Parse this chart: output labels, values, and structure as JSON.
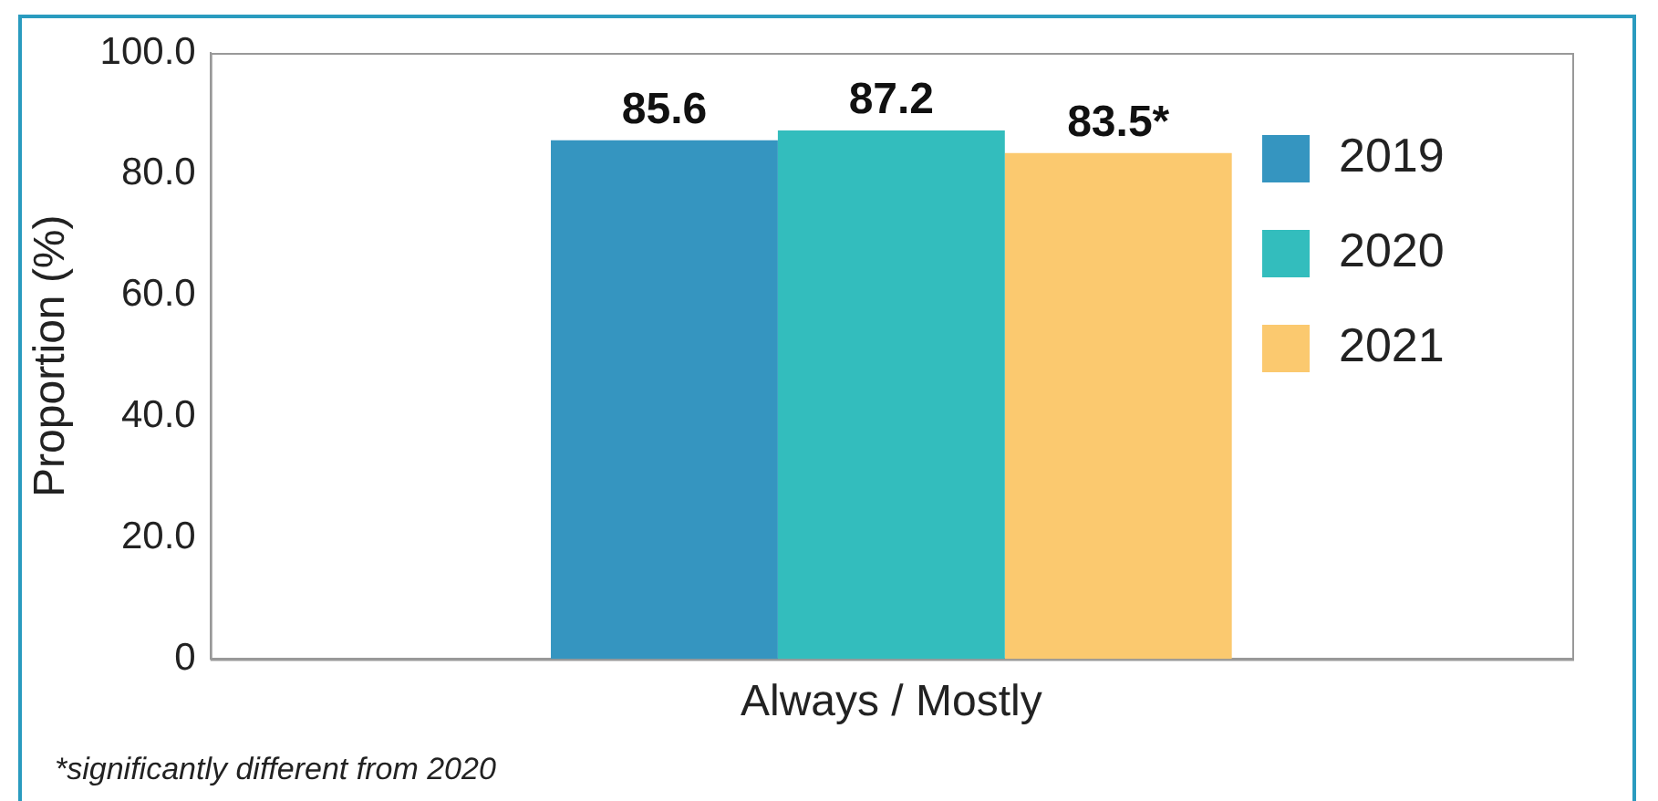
{
  "chart_data": {
    "type": "bar",
    "categories": [
      "Always / Mostly"
    ],
    "ylabel": "Proportion (%)",
    "series": [
      {
        "name": "2019",
        "color": "#3595c0",
        "values": [
          85.6
        ],
        "value_labels": [
          "85.6"
        ]
      },
      {
        "name": "2020",
        "color": "#33bdbd",
        "values": [
          87.2
        ],
        "value_labels": [
          "87.2"
        ]
      },
      {
        "name": "2021",
        "color": "#fbc96f",
        "values": [
          83.5
        ],
        "value_labels": [
          "83.5*"
        ]
      }
    ],
    "ylim": [
      0,
      100
    ],
    "yticks": [
      {
        "value": 0,
        "label": "0"
      },
      {
        "value": 20,
        "label": "20.0"
      },
      {
        "value": 40,
        "label": "40.0"
      },
      {
        "value": 60,
        "label": "60.0"
      },
      {
        "value": 80,
        "label": "80.0"
      },
      {
        "value": 100,
        "label": "100.0"
      }
    ],
    "grid": false,
    "legend": "top right",
    "annotations": [
      "*significantly different from 2020"
    ]
  }
}
